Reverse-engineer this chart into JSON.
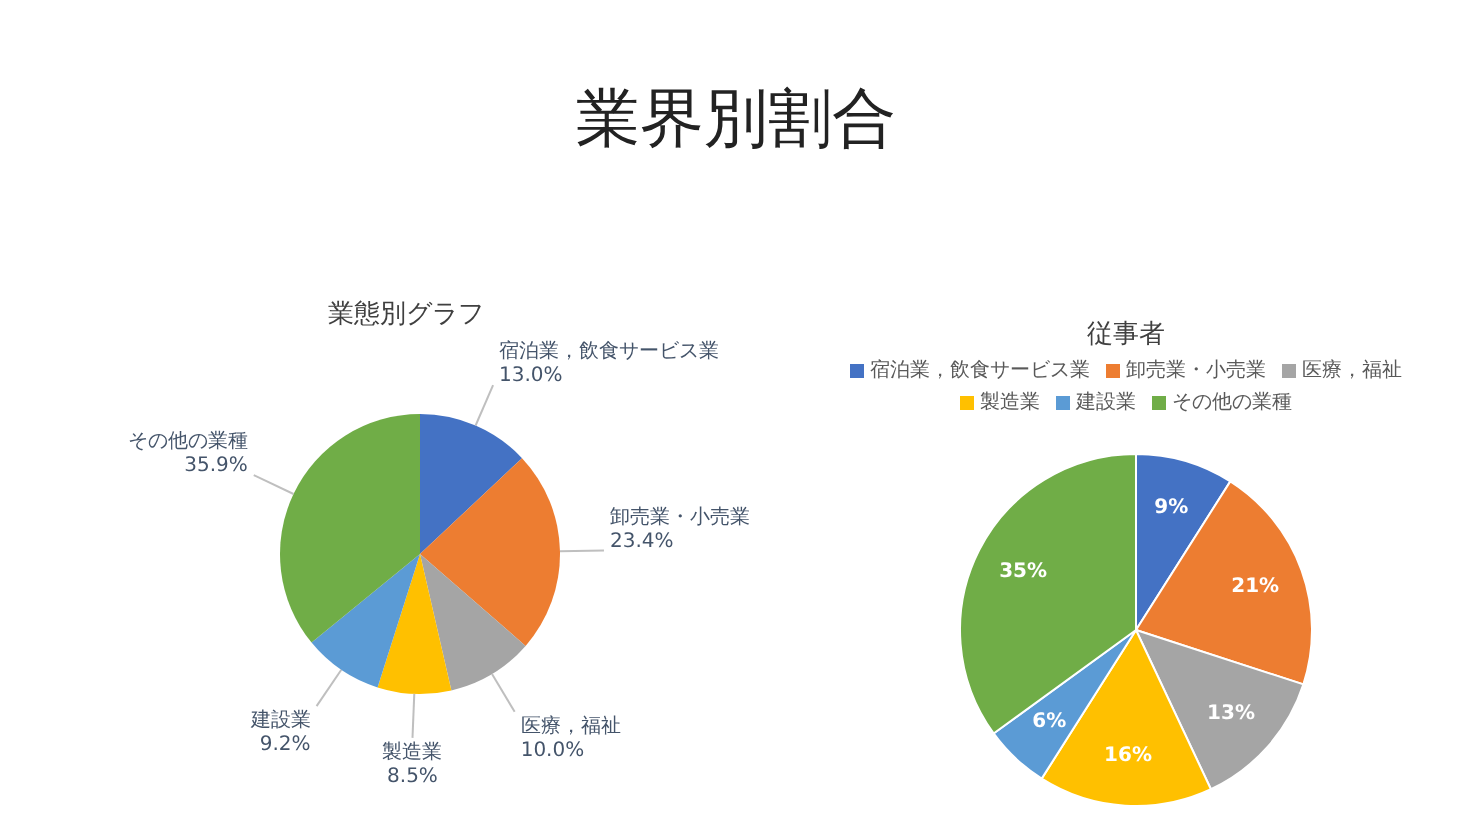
{
  "chart_data": [
    {
      "type": "pie",
      "title": "業態別グラフ",
      "categories": [
        "宿泊業，飲食サービス業",
        "卸売業・小売業",
        "医療，福祉",
        "製造業",
        "建設業",
        "その他の業種"
      ],
      "values": [
        13.0,
        23.4,
        10.0,
        8.5,
        9.2,
        35.9
      ],
      "value_labels": [
        "13.0%",
        "23.4%",
        "10.0%",
        "8.5%",
        "9.2%",
        "35.9%"
      ],
      "colors": [
        "#4472c4",
        "#ed7d31",
        "#a5a5a5",
        "#ffc000",
        "#5b9bd5",
        "#70ad47"
      ],
      "legend": false,
      "annotations": [
        "業界別割合"
      ]
    },
    {
      "type": "pie",
      "title": "従事者",
      "categories": [
        "宿泊業，飲食サービス業",
        "卸売業・小売業",
        "医療，福祉",
        "製造業",
        "建設業",
        "その他の業種"
      ],
      "values": [
        9,
        21,
        13,
        16,
        6,
        35
      ],
      "value_labels": [
        "9%",
        "21%",
        "13%",
        "16%",
        "6%",
        "35%"
      ],
      "colors": [
        "#4472c4",
        "#ed7d31",
        "#a5a5a5",
        "#ffc000",
        "#5b9bd5",
        "#70ad47"
      ],
      "legend": "top"
    }
  ]
}
